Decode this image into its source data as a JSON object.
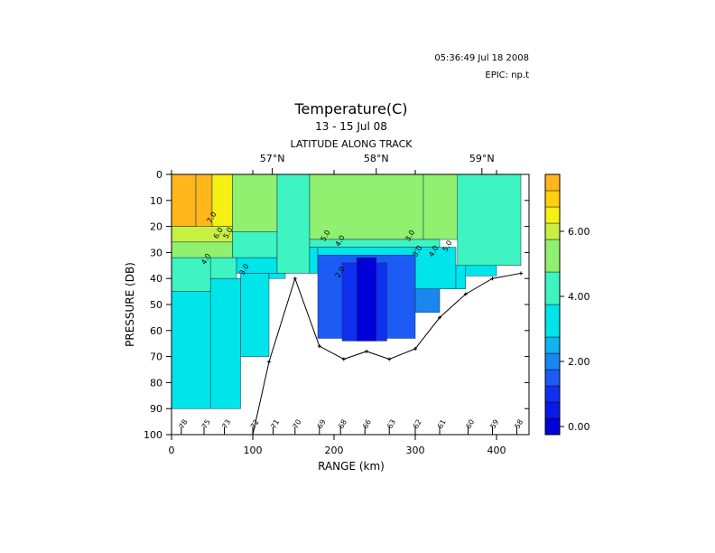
{
  "header": {
    "timestamp": "05:36:49  Jul 18 2008",
    "epic": "EPIC:  np.t"
  },
  "chart_data": {
    "type": "heatmap",
    "title": "Temperature(C)",
    "subtitle": "13 - 15 Jul 08",
    "top_axis_label": "LATITUDE ALONG TRACK",
    "top_ticks": [
      {
        "label": "57°N",
        "x": 124
      },
      {
        "label": "58°N",
        "x": 252
      },
      {
        "label": "59°N",
        "x": 382
      }
    ],
    "xlabel": "RANGE (km)",
    "ylabel": "PRESSURE (DB)",
    "xlim": [
      0,
      440
    ],
    "ylim": [
      100,
      0
    ],
    "x_ticks": [
      0,
      100,
      200,
      300,
      400
    ],
    "y_ticks": [
      0,
      10,
      20,
      30,
      40,
      50,
      60,
      70,
      80,
      90,
      100
    ],
    "colorbar": {
      "range": [
        -0.25,
        7.75
      ],
      "ticks": [
        "0.00",
        "2.00",
        "4.00",
        "6.00"
      ],
      "tick_values": [
        0,
        2,
        4,
        6
      ],
      "levels": [
        {
          "lo": -0.25,
          "hi": 0.25,
          "color": "#0000d8"
        },
        {
          "lo": 0.25,
          "hi": 0.75,
          "color": "#0a1ae6"
        },
        {
          "lo": 0.75,
          "hi": 1.25,
          "color": "#1030f0"
        },
        {
          "lo": 1.25,
          "hi": 1.75,
          "color": "#1c5cf4"
        },
        {
          "lo": 1.75,
          "hi": 2.25,
          "color": "#1a86f0"
        },
        {
          "lo": 2.25,
          "hi": 2.75,
          "color": "#10b4ee"
        },
        {
          "lo": 2.75,
          "hi": 3.75,
          "color": "#00e5ea"
        },
        {
          "lo": 3.75,
          "hi": 4.75,
          "color": "#3ef4c0"
        },
        {
          "lo": 4.75,
          "hi": 5.75,
          "color": "#90f070"
        },
        {
          "lo": 5.75,
          "hi": 6.25,
          "color": "#c8f043"
        },
        {
          "lo": 6.25,
          "hi": 6.75,
          "color": "#f4f014"
        },
        {
          "lo": 6.75,
          "hi": 7.25,
          "color": "#ffd010"
        },
        {
          "lo": 7.25,
          "hi": 7.75,
          "color": "#ffb61b"
        }
      ]
    },
    "stations": [
      {
        "label": "78",
        "x": 12
      },
      {
        "label": "75",
        "x": 40
      },
      {
        "label": "73",
        "x": 65
      },
      {
        "label": "72",
        "x": 100
      },
      {
        "label": "71",
        "x": 125
      },
      {
        "label": "70",
        "x": 152
      },
      {
        "label": "69",
        "x": 182
      },
      {
        "label": "68",
        "x": 208
      },
      {
        "label": "66",
        "x": 238
      },
      {
        "label": "63",
        "x": 268
      },
      {
        "label": "62",
        "x": 300
      },
      {
        "label": "61",
        "x": 330
      },
      {
        "label": "60",
        "x": 365
      },
      {
        "label": "59",
        "x": 395
      },
      {
        "label": "58",
        "x": 425
      }
    ],
    "bottom_depth": [
      {
        "x": 100,
        "y": 100
      },
      {
        "x": 120,
        "y": 72
      },
      {
        "x": 152,
        "y": 40
      },
      {
        "x": 182,
        "y": 66
      },
      {
        "x": 212,
        "y": 71
      },
      {
        "x": 240,
        "y": 68
      },
      {
        "x": 268,
        "y": 71
      },
      {
        "x": 300,
        "y": 67
      },
      {
        "x": 330,
        "y": 55
      },
      {
        "x": 362,
        "y": 46
      },
      {
        "x": 395,
        "y": 40
      },
      {
        "x": 430,
        "y": 38
      }
    ],
    "fields": [
      {
        "x0": 0,
        "x1": 30,
        "y0": 0,
        "y1": 20,
        "value": 7.5
      },
      {
        "x0": 30,
        "x1": 50,
        "y0": 0,
        "y1": 22,
        "value": 7.5
      },
      {
        "x0": 50,
        "x1": 75,
        "y0": 0,
        "y1": 20,
        "value": 6.5
      },
      {
        "x0": 0,
        "x1": 75,
        "y0": 20,
        "y1": 26,
        "value": 6.0
      },
      {
        "x0": 0,
        "x1": 75,
        "y0": 26,
        "y1": 32,
        "value": 5.0
      },
      {
        "x0": 75,
        "x1": 130,
        "y0": 0,
        "y1": 22,
        "value": 5.0
      },
      {
        "x0": 75,
        "x1": 130,
        "y0": 22,
        "y1": 32,
        "value": 4.0
      },
      {
        "x0": 0,
        "x1": 48,
        "y0": 32,
        "y1": 45,
        "value": 4.0
      },
      {
        "x0": 48,
        "x1": 80,
        "y0": 32,
        "y1": 40,
        "value": 4.0
      },
      {
        "x0": 80,
        "x1": 130,
        "y0": 32,
        "y1": 38,
        "value": 3.5
      },
      {
        "x0": 0,
        "x1": 48,
        "y0": 45,
        "y1": 90,
        "value": 3.2
      },
      {
        "x0": 48,
        "x1": 85,
        "y0": 40,
        "y1": 90,
        "value": 3.0
      },
      {
        "x0": 85,
        "x1": 120,
        "y0": 38,
        "y1": 70,
        "value": 3.0
      },
      {
        "x0": 120,
        "x1": 140,
        "y0": 38,
        "y1": 40,
        "value": 3.0
      },
      {
        "x0": 130,
        "x1": 170,
        "y0": 0,
        "y1": 38,
        "value": 4.0
      },
      {
        "x0": 170,
        "x1": 310,
        "y0": 0,
        "y1": 25,
        "value": 5.0
      },
      {
        "x0": 310,
        "x1": 352,
        "y0": 0,
        "y1": 25,
        "value": 5.0
      },
      {
        "x0": 352,
        "x1": 430,
        "y0": 0,
        "y1": 35,
        "value": 4.0
      },
      {
        "x0": 170,
        "x1": 330,
        "y0": 25,
        "y1": 28,
        "value": 4.0
      },
      {
        "x0": 170,
        "x1": 180,
        "y0": 28,
        "y1": 38,
        "value": 3.0
      },
      {
        "x0": 180,
        "x1": 300,
        "y0": 28,
        "y1": 31,
        "value": 3.0
      },
      {
        "x0": 300,
        "x1": 350,
        "y0": 28,
        "y1": 44,
        "value": 3.0
      },
      {
        "x0": 350,
        "x1": 362,
        "y0": 35,
        "y1": 44,
        "value": 3.0
      },
      {
        "x0": 362,
        "x1": 400,
        "y0": 35,
        "y1": 39,
        "value": 3.0
      },
      {
        "x0": 400,
        "x1": 430,
        "y0": 35,
        "y1": 35,
        "value": 3.0
      },
      {
        "x0": 180,
        "x1": 300,
        "y0": 31,
        "y1": 63,
        "value": 1.5
      },
      {
        "x0": 300,
        "x1": 330,
        "y0": 44,
        "y1": 53,
        "value": 2.0
      },
      {
        "x0": 210,
        "x1": 265,
        "y0": 34,
        "y1": 64,
        "value": 1.0
      },
      {
        "x0": 228,
        "x1": 252,
        "y0": 32,
        "y1": 64,
        "value": 0.0
      }
    ],
    "contour_labels": [
      {
        "text": "7.0",
        "x": 52,
        "y": 17
      },
      {
        "text": "6.0",
        "x": 60,
        "y": 23
      },
      {
        "text": "5.0",
        "x": 72,
        "y": 23
      },
      {
        "text": "4.0",
        "x": 45,
        "y": 33
      },
      {
        "text": "3.0",
        "x": 92,
        "y": 37
      },
      {
        "text": "5.0",
        "x": 192,
        "y": 24
      },
      {
        "text": "4.0",
        "x": 210,
        "y": 26
      },
      {
        "text": "3.0",
        "x": 296,
        "y": 24
      },
      {
        "text": "3.0",
        "x": 305,
        "y": 30
      },
      {
        "text": "4.0",
        "x": 325,
        "y": 30
      },
      {
        "text": "5.0",
        "x": 342,
        "y": 28
      },
      {
        "text": "2.0",
        "x": 210,
        "y": 38
      }
    ],
    "grid": false
  }
}
